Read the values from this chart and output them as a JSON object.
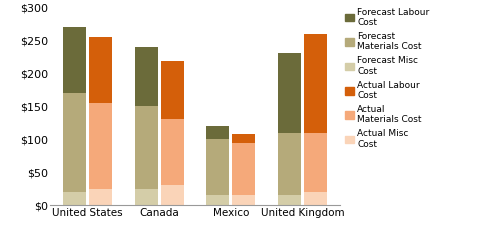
{
  "categories": [
    "United States",
    "Canada",
    "Mexico",
    "United Kingdom"
  ],
  "forecast": {
    "misc": [
      20,
      25,
      15,
      15
    ],
    "materials": [
      150,
      125,
      85,
      95
    ],
    "labour": [
      100,
      90,
      20,
      120
    ]
  },
  "actual": {
    "misc": [
      25,
      30,
      15,
      20
    ],
    "materials": [
      130,
      100,
      80,
      90
    ],
    "labour": [
      100,
      88,
      13,
      150
    ]
  },
  "colors": {
    "forecast_labour": "#6b6b3a",
    "forecast_materials": "#b5aa7a",
    "forecast_misc": "#d4cda8",
    "actual_labour": "#d45f0a",
    "actual_materials": "#f5a97a",
    "actual_misc": "#fad4b8"
  },
  "ylim": [
    0,
    300
  ],
  "yticks": [
    0,
    50,
    100,
    150,
    200,
    250,
    300
  ],
  "bar_width": 0.32,
  "bar_gap": 0.04,
  "legend_labels": [
    "Forecast Labour\nCost",
    "Forecast\nMaterials Cost",
    "Forecast Misc\nCost",
    "Actual Labour\nCost",
    "Actual\nMaterials Cost",
    "Actual Misc\nCost"
  ],
  "legend_colors_order": [
    "forecast_labour",
    "forecast_materials",
    "forecast_misc",
    "actual_labour",
    "actual_materials",
    "actual_misc"
  ]
}
